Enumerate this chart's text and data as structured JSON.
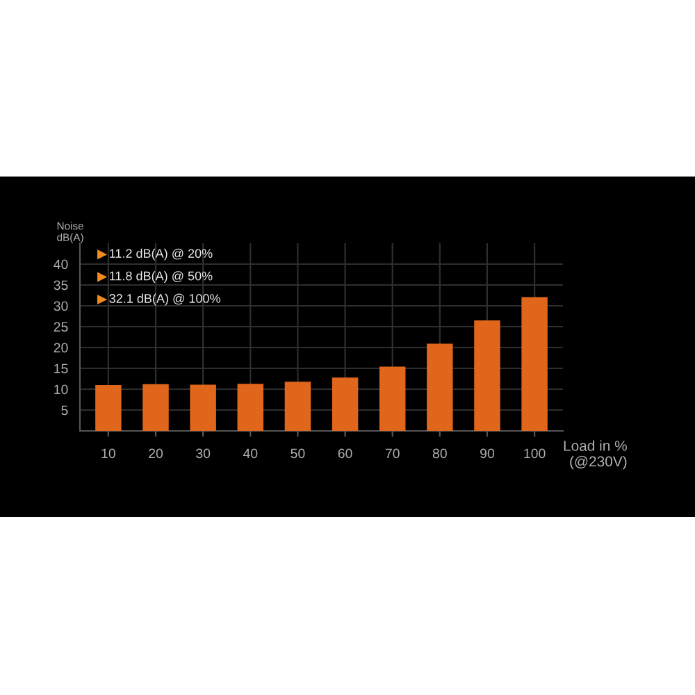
{
  "chart_data": {
    "type": "bar",
    "categories": [
      "10",
      "20",
      "30",
      "40",
      "50",
      "60",
      "70",
      "80",
      "90",
      "100"
    ],
    "values": [
      11.0,
      11.2,
      11.1,
      11.3,
      11.8,
      12.8,
      15.4,
      20.9,
      26.5,
      32.1
    ],
    "color": "#e0661c",
    "xlabel": "Load in %\n(@230V)",
    "ylabel": "Noise\ndB(A)",
    "ylim": [
      0,
      45
    ],
    "yticks": [
      5,
      10,
      15,
      20,
      25,
      30,
      35,
      40
    ],
    "grid": true,
    "annotations": [
      "11.2 dB(A) @ 20%",
      "11.8 dB(A) @ 50%",
      "32.1 dB(A) @ 100%"
    ]
  }
}
